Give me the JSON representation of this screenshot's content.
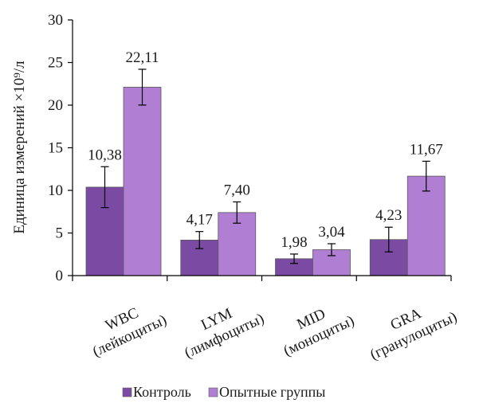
{
  "chart_data": {
    "type": "bar",
    "ylabel": "Единица измерений ×10⁹/л",
    "ylim": [
      0,
      30
    ],
    "yticks": [
      0,
      5,
      10,
      15,
      20,
      25,
      30
    ],
    "ytick_labels": [
      "0",
      "5",
      "10",
      "15",
      "20",
      "25",
      "30"
    ],
    "grid": false,
    "legend_position": "bottom",
    "categories": [
      {
        "line1": "WBC",
        "line2": "(лейкоциты)"
      },
      {
        "line1": "LYM",
        "line2": "(лимфоциты)"
      },
      {
        "line1": "MID",
        "line2": "(моноциты)"
      },
      {
        "line1": "GRA",
        "line2": "(гранулоциты)"
      }
    ],
    "series": [
      {
        "name": "Контроль",
        "color": "#7b4ba3",
        "values": [
          10.38,
          4.17,
          1.98,
          4.23
        ],
        "value_labels": [
          "10,38",
          "4,17",
          "1,98",
          "4,23"
        ],
        "error": [
          2.4,
          1.0,
          0.55,
          1.45
        ]
      },
      {
        "name": "Опытные группы",
        "color": "#b07fd4",
        "values": [
          22.11,
          7.4,
          3.04,
          11.67
        ],
        "value_labels": [
          "22,11",
          "7,40",
          "3,04",
          "11,67"
        ],
        "error": [
          2.1,
          1.25,
          0.7,
          1.75
        ]
      }
    ]
  }
}
